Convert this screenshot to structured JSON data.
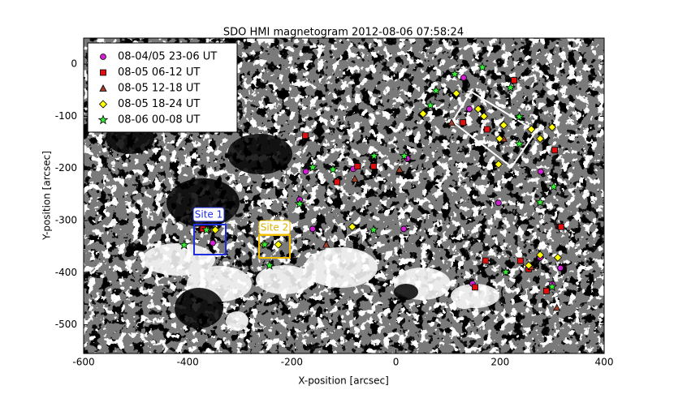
{
  "chart_data": {
    "type": "scatter",
    "title": "SDO HMI magnetogram 2012-08-06 07:58:24",
    "x_label": "X-position [arcsec]",
    "y_label": "Y-position [arcsec]",
    "xlim": [
      -600,
      400
    ],
    "ylim": [
      -555,
      50
    ],
    "xticks": [
      -600,
      -400,
      -200,
      0,
      200,
      400
    ],
    "yticks": [
      0,
      -100,
      -200,
      -300,
      -400,
      -500
    ],
    "legend": "upper left",
    "annotations": [
      "Site 1",
      "Site 2"
    ],
    "series": [
      {
        "name": "08-04/05 23-06 UT",
        "color": "#d020d0",
        "marker": "circle",
        "x": [
          -173,
          -82,
          22,
          -185,
          -160,
          15,
          -352,
          141,
          130,
          197,
          278,
          277,
          316,
          300,
          147
        ],
        "y": [
          -206,
          -201,
          -181,
          -260,
          -316,
          -316,
          -343,
          -86,
          -26,
          -266,
          -206,
          -371,
          -391,
          -422,
          -421
        ]
      },
      {
        "name": "08-05 06-12 UT",
        "color": "#e01010",
        "marker": "square",
        "x": [
          -174,
          -74,
          -113,
          -43,
          -371,
          129,
          175,
          227,
          305,
          317,
          172,
          239,
          255,
          289,
          152
        ],
        "y": [
          -137,
          -196,
          -226,
          -196,
          -316,
          -112,
          -125,
          -31,
          -165,
          -312,
          -377,
          -377,
          -393,
          -435,
          -428
        ]
      },
      {
        "name": "08-05 12-18 UT",
        "color": "#a0402a",
        "marker": "triangle",
        "x": [
          -134,
          -79,
          7,
          107,
          207,
          260,
          309,
          -361
        ],
        "y": [
          -346,
          -220,
          -202,
          -112,
          -143,
          -389,
          -467,
          -316
        ]
      },
      {
        "name": "08-05 18-24 UT",
        "color": "#ffff00",
        "marker": "diamond",
        "x": [
          -347,
          -254,
          -226,
          -84,
          52,
          116,
          158,
          169,
          199,
          197,
          207,
          260,
          277,
          300,
          311,
          277,
          255
        ],
        "y": [
          -318,
          -346,
          -346,
          -312,
          -95,
          -56,
          -86,
          -100,
          -143,
          -192,
          -117,
          -125,
          -143,
          -121,
          -371,
          -366,
          -386
        ]
      },
      {
        "name": "08-06 00-08 UT",
        "color": "#33ee33",
        "marker": "star",
        "x": [
          -407,
          -364,
          -252,
          -243,
          -185,
          -160,
          -121,
          -42,
          -43,
          16,
          77,
          66,
          113,
          166,
          220,
          237,
          237,
          277,
          303,
          300,
          211
        ],
        "y": [
          -347,
          -318,
          -346,
          -386,
          -268,
          -198,
          -202,
          -176,
          -318,
          -176,
          -51,
          -79,
          -19,
          -6,
          -45,
          -101,
          -153,
          -265,
          -235,
          -427,
          -399
        ]
      }
    ]
  }
}
